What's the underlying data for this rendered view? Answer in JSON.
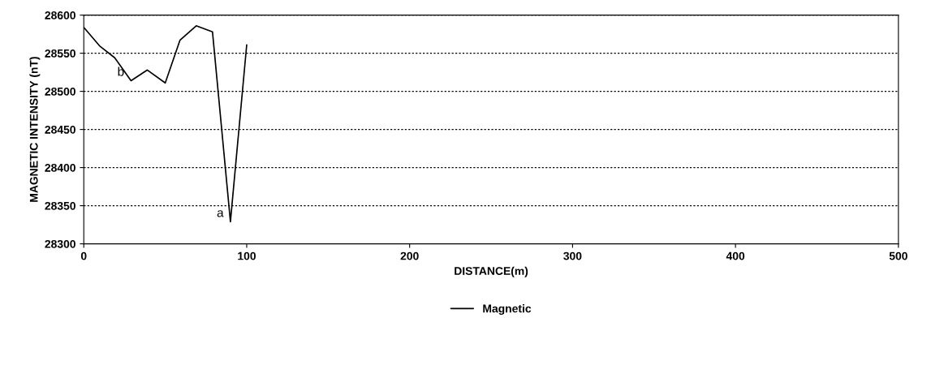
{
  "chart_data": {
    "type": "line",
    "xlabel": "DISTANCE(m)",
    "ylabel": "MAGNETIC INTENSITY (nT)",
    "x": [
      0,
      10,
      19,
      29,
      39,
      50,
      59,
      69,
      79,
      90,
      100
    ],
    "series": [
      {
        "name": "Magnetic",
        "color": "#000000",
        "values": [
          28584,
          28559,
          28544,
          28514,
          28528,
          28511,
          28567,
          28586,
          28578,
          28329,
          28561
        ]
      }
    ],
    "xlim": [
      0,
      500
    ],
    "xticks": [
      0,
      100,
      200,
      300,
      400,
      500
    ],
    "ylim": [
      28300,
      28600
    ],
    "yticks": [
      28300,
      28350,
      28400,
      28450,
      28500,
      28550,
      28600
    ],
    "grid": "y",
    "legend": "bottom",
    "marker": "none",
    "line_style": "solid",
    "annotations": [
      {
        "text": "b",
        "x": 29,
        "y": 28514
      },
      {
        "text": "a",
        "x": 90,
        "y": 28329
      }
    ]
  }
}
